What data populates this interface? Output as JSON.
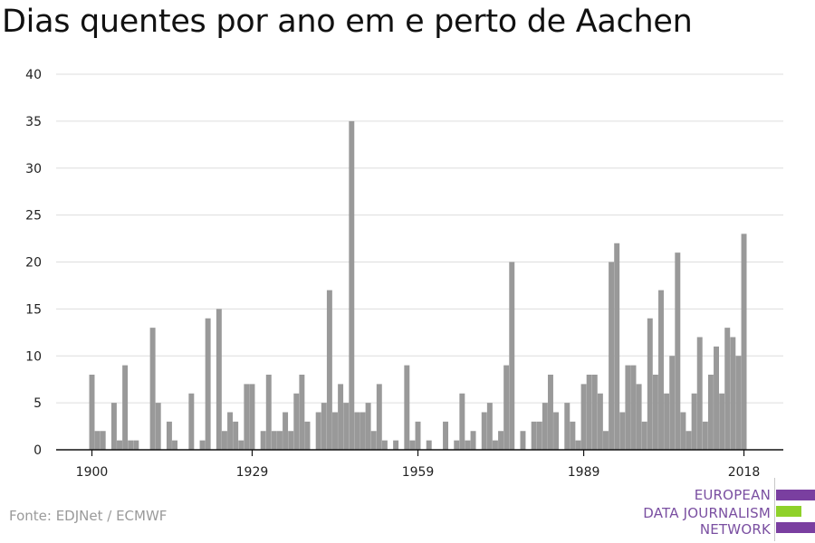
{
  "title": "Dias quentes por ano em e perto de Aachen",
  "source": "Fonte: EDJNet / ECMWF",
  "logo": {
    "lines": [
      "EUROPEAN",
      "DATA JOURNALISM",
      "NETWORK"
    ],
    "colors": {
      "purple": "#7a3fa0",
      "green": "#8fd12a",
      "text": "#7a4fa1"
    }
  },
  "colors": {
    "bar": "#999999",
    "grid": "#dddddd",
    "axis": "#111111"
  },
  "chart_data": {
    "type": "bar",
    "title": "Dias quentes por ano em e perto de Aachen",
    "xlabel": "",
    "ylabel": "",
    "ylim": [
      0,
      40
    ],
    "yticks": [
      0,
      5,
      10,
      15,
      20,
      25,
      30,
      35,
      40
    ],
    "xticks": [
      1900,
      1929,
      1959,
      1989,
      2018
    ],
    "grid": true,
    "x": [
      1900,
      1901,
      1902,
      1903,
      1904,
      1905,
      1906,
      1907,
      1908,
      1909,
      1910,
      1911,
      1912,
      1913,
      1914,
      1915,
      1916,
      1917,
      1918,
      1919,
      1920,
      1921,
      1922,
      1923,
      1924,
      1925,
      1926,
      1927,
      1928,
      1929,
      1930,
      1931,
      1932,
      1933,
      1934,
      1935,
      1936,
      1937,
      1938,
      1939,
      1940,
      1941,
      1942,
      1943,
      1944,
      1945,
      1946,
      1947,
      1948,
      1949,
      1950,
      1951,
      1952,
      1953,
      1954,
      1955,
      1956,
      1957,
      1958,
      1959,
      1960,
      1961,
      1962,
      1963,
      1964,
      1965,
      1966,
      1967,
      1968,
      1969,
      1970,
      1971,
      1972,
      1973,
      1974,
      1975,
      1976,
      1977,
      1978,
      1979,
      1980,
      1981,
      1982,
      1983,
      1984,
      1985,
      1986,
      1987,
      1988,
      1989,
      1990,
      1991,
      1992,
      1993,
      1994,
      1995,
      1996,
      1997,
      1998,
      1999,
      2000,
      2001,
      2002,
      2003,
      2004,
      2005,
      2006,
      2007,
      2008,
      2009,
      2010,
      2011,
      2012,
      2013,
      2014,
      2015,
      2016,
      2017,
      2018
    ],
    "values": [
      8,
      2,
      2,
      0,
      5,
      1,
      9,
      1,
      1,
      0,
      0,
      13,
      5,
      0,
      3,
      1,
      0,
      0,
      6,
      0,
      1,
      14,
      0,
      15,
      2,
      4,
      3,
      1,
      7,
      7,
      0,
      2,
      8,
      2,
      2,
      4,
      2,
      6,
      8,
      3,
      0,
      4,
      5,
      17,
      4,
      7,
      5,
      35,
      4,
      4,
      5,
      2,
      7,
      1,
      0,
      1,
      0,
      9,
      1,
      3,
      0,
      1,
      0,
      0,
      3,
      0,
      1,
      6,
      1,
      2,
      0,
      4,
      5,
      1,
      2,
      9,
      20,
      0,
      2,
      0,
      3,
      3,
      5,
      8,
      4,
      0,
      5,
      3,
      1,
      7,
      8,
      8,
      6,
      2,
      20,
      22,
      4,
      9,
      9,
      7,
      3,
      14,
      8,
      17,
      6,
      10,
      21,
      4,
      2,
      6,
      12,
      3,
      8,
      11,
      6,
      13,
      12,
      10,
      23
    ]
  }
}
